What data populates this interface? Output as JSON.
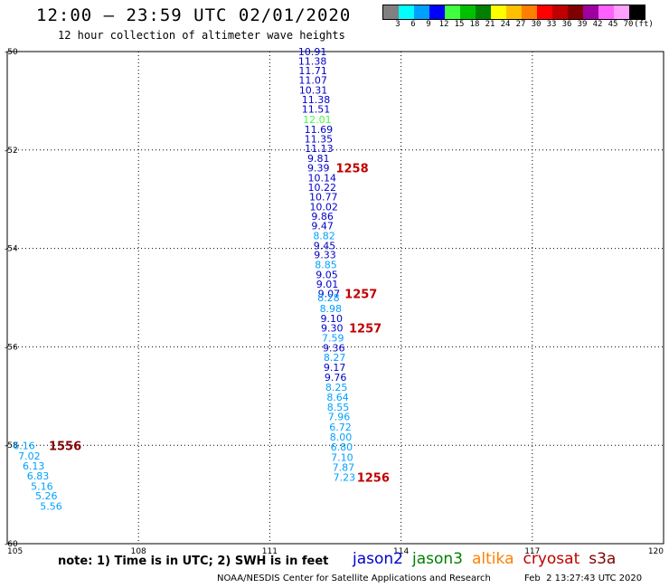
{
  "header": {
    "title": "12:00 – 23:59 UTC 02/01/2020",
    "subtitle": "12 hour collection of altimeter wave heights"
  },
  "colorbar": {
    "colors": [
      "#808080",
      "#00ffff",
      "#00a0ff",
      "#0000ff",
      "#40ff40",
      "#00c000",
      "#008000",
      "#ffff00",
      "#ffc000",
      "#ff8000",
      "#ff0000",
      "#c00000",
      "#800000",
      "#a000a0",
      "#ff60ff",
      "#ffa0ff",
      "#000000"
    ],
    "labels": [
      "3",
      "6",
      "9",
      "12",
      "15",
      "18",
      "21",
      "24",
      "27",
      "30",
      "33",
      "36",
      "39",
      "42",
      "45",
      "70",
      "(ft)"
    ]
  },
  "chart_data": {
    "type": "scatter",
    "title": "12:00 – 23:59 UTC 02/01/2020",
    "subtitle": "12 hour collection of altimeter wave heights",
    "xlim": [
      105,
      120
    ],
    "ylim": [
      -60,
      -50
    ],
    "x_ticks": [
      "105",
      "108",
      "111",
      "114",
      "117",
      "120"
    ],
    "y_ticks": [
      "-50",
      "-52",
      "-54",
      "-56",
      "-58",
      "-60"
    ],
    "grid": true,
    "series": [
      {
        "name": "jason2",
        "color": "#0000c8",
        "points": []
      },
      {
        "name": "jason3",
        "color": "#008000",
        "points": []
      },
      {
        "name": "altika",
        "color": "#ff8000",
        "points": []
      },
      {
        "name": "cryosat",
        "color": "#c00000",
        "points": []
      },
      {
        "name": "s3a",
        "color": "#800000",
        "points": []
      }
    ],
    "track_points": [
      {
        "x": 111.65,
        "y": -50.0,
        "label": "10.91",
        "color": "#0000c8"
      },
      {
        "x": 111.65,
        "y": -50.19,
        "label": "11.38",
        "color": "#0000c8"
      },
      {
        "x": 111.66,
        "y": -50.39,
        "label": "11.71",
        "color": "#0000c8"
      },
      {
        "x": 111.66,
        "y": -50.58,
        "label": "11.07",
        "color": "#0000c8"
      },
      {
        "x": 111.67,
        "y": -50.78,
        "label": "10.31",
        "color": "#0000c8"
      },
      {
        "x": 111.73,
        "y": -50.97,
        "label": "11.38",
        "color": "#0000c8"
      },
      {
        "x": 111.73,
        "y": -51.17,
        "label": "11.51",
        "color": "#0000c8"
      },
      {
        "x": 111.76,
        "y": -51.38,
        "label": "12.01",
        "color": "#40ff40"
      },
      {
        "x": 111.79,
        "y": -51.58,
        "label": "11.69",
        "color": "#0000c8"
      },
      {
        "x": 111.79,
        "y": -51.77,
        "label": "11.35",
        "color": "#0000c8"
      },
      {
        "x": 111.8,
        "y": -51.97,
        "label": "11.13",
        "color": "#0000c8"
      },
      {
        "x": 111.86,
        "y": -52.17,
        "label": "9.81",
        "color": "#0000c8"
      },
      {
        "x": 111.86,
        "y": -52.36,
        "label": "9.39",
        "color": "#0000c8"
      },
      {
        "x": 111.87,
        "y": -52.56,
        "label": "10.14",
        "color": "#0000c8"
      },
      {
        "x": 111.87,
        "y": -52.76,
        "label": "10.22",
        "color": "#0000c8"
      },
      {
        "x": 111.9,
        "y": -52.95,
        "label": "10.77",
        "color": "#0000c8"
      },
      {
        "x": 111.91,
        "y": -53.15,
        "label": "10.02",
        "color": "#0000c8"
      },
      {
        "x": 111.95,
        "y": -53.35,
        "label": "9.86",
        "color": "#0000c8"
      },
      {
        "x": 111.95,
        "y": -53.54,
        "label": "9.47",
        "color": "#0000c8"
      },
      {
        "x": 111.99,
        "y": -53.74,
        "label": "8.82",
        "color": "#00a0ff"
      },
      {
        "x": 112.0,
        "y": -53.94,
        "label": "9.45",
        "color": "#0000c8"
      },
      {
        "x": 112.01,
        "y": -54.13,
        "label": "9.33",
        "color": "#0000c8"
      },
      {
        "x": 112.03,
        "y": -54.33,
        "label": "8.85",
        "color": "#00a0ff"
      },
      {
        "x": 112.05,
        "y": -54.53,
        "label": "9.05",
        "color": "#0000c8"
      },
      {
        "x": 112.06,
        "y": -54.72,
        "label": "9.01",
        "color": "#0000c8"
      },
      {
        "x": 112.1,
        "y": -54.92,
        "label": "9.07",
        "color": "#0000c8"
      },
      {
        "x": 112.09,
        "y": -55.0,
        "label": "8.28",
        "color": "#00a0ff"
      },
      {
        "x": 112.14,
        "y": -55.22,
        "label": "8.98",
        "color": "#00a0ff"
      },
      {
        "x": 112.16,
        "y": -55.42,
        "label": "9.10",
        "color": "#0000c8"
      },
      {
        "x": 112.17,
        "y": -55.62,
        "label": "9.30",
        "color": "#0000c8"
      },
      {
        "x": 112.19,
        "y": -55.82,
        "label": "7.59",
        "color": "#00a0ff"
      },
      {
        "x": 112.21,
        "y": -56.02,
        "label": "9.36",
        "color": "#0000c8"
      },
      {
        "x": 112.23,
        "y": -56.21,
        "label": "8.27",
        "color": "#00a0ff"
      },
      {
        "x": 112.23,
        "y": -56.42,
        "label": "9.17",
        "color": "#0000c8"
      },
      {
        "x": 112.25,
        "y": -56.62,
        "label": "9.76",
        "color": "#0000c8"
      },
      {
        "x": 112.27,
        "y": -56.82,
        "label": "8.25",
        "color": "#00a0ff"
      },
      {
        "x": 112.3,
        "y": -57.02,
        "label": "8.64",
        "color": "#00a0ff"
      },
      {
        "x": 112.31,
        "y": -57.22,
        "label": "8.55",
        "color": "#00a0ff"
      },
      {
        "x": 112.33,
        "y": -57.42,
        "label": "7.96",
        "color": "#00a0ff"
      },
      {
        "x": 112.36,
        "y": -57.63,
        "label": "6.72",
        "color": "#00a0ff"
      },
      {
        "x": 112.37,
        "y": -57.83,
        "label": "8.00",
        "color": "#00a0ff"
      },
      {
        "x": 112.39,
        "y": -58.03,
        "label": "6.80",
        "color": "#00a0ff"
      },
      {
        "x": 112.4,
        "y": -58.24,
        "label": "7.10",
        "color": "#00a0ff"
      },
      {
        "x": 112.43,
        "y": -58.45,
        "label": "7.87",
        "color": "#00a0ff"
      },
      {
        "x": 112.45,
        "y": -58.65,
        "label": "7.23",
        "color": "#00a0ff"
      },
      {
        "x": 105.13,
        "y": -58.01,
        "label": "6.16",
        "color": "#00a0ff"
      },
      {
        "x": 105.25,
        "y": -58.22,
        "label": "7.02",
        "color": "#00a0ff"
      },
      {
        "x": 105.35,
        "y": -58.42,
        "label": "6.13",
        "color": "#00a0ff"
      },
      {
        "x": 105.45,
        "y": -58.62,
        "label": "6.83",
        "color": "#00a0ff"
      },
      {
        "x": 105.54,
        "y": -58.83,
        "label": "5.16",
        "color": "#00a0ff"
      },
      {
        "x": 105.64,
        "y": -59.03,
        "label": "5.26",
        "color": "#00a0ff"
      },
      {
        "x": 105.75,
        "y": -59.24,
        "label": "5.56",
        "color": "#00a0ff"
      }
    ],
    "time_labels": [
      {
        "x": 112.51,
        "y": -52.36,
        "label": "1258",
        "color": "#c00000"
      },
      {
        "x": 112.71,
        "y": -54.92,
        "label": "1257",
        "color": "#c00000"
      },
      {
        "x": 112.81,
        "y": -55.62,
        "label": "1257",
        "color": "#c00000"
      },
      {
        "x": 112.99,
        "y": -58.65,
        "label": "1256",
        "color": "#c00000"
      },
      {
        "x": 105.95,
        "y": -58.01,
        "label": "1556",
        "color": "#800000"
      }
    ]
  },
  "footer": {
    "note": "note: 1) Time is in UTC; 2) SWH is in feet",
    "credit": "NOAA/NESDIS Center for Satellite Applications and Research",
    "date": "Feb  2 13:27:43 UTC 2020"
  },
  "legend": [
    {
      "name": "jason2",
      "color": "#0000c8"
    },
    {
      "name": "jason3",
      "color": "#008000"
    },
    {
      "name": "altika",
      "color": "#ff8000"
    },
    {
      "name": "cryosat",
      "color": "#c00000"
    },
    {
      "name": "s3a",
      "color": "#800000"
    }
  ]
}
